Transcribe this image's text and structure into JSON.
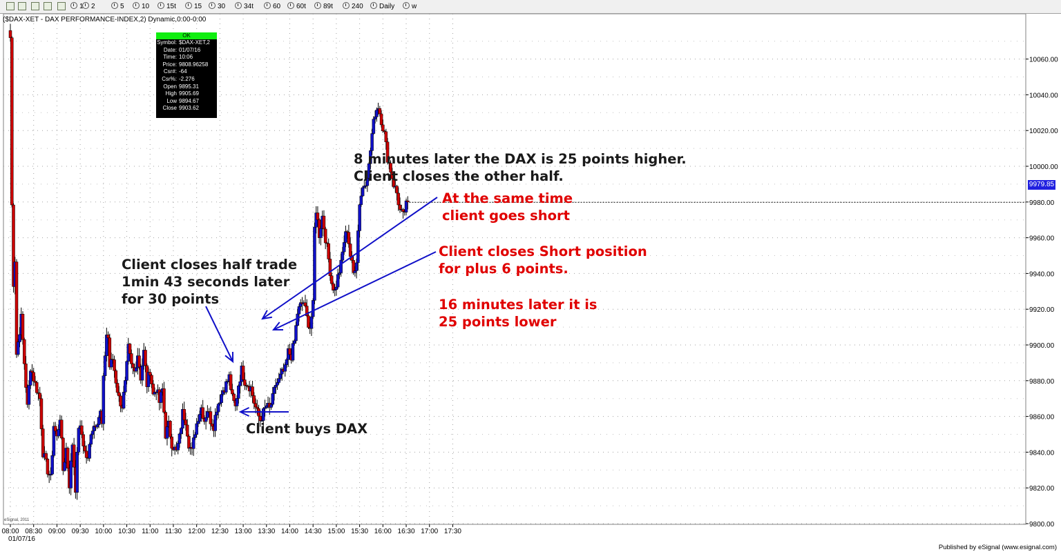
{
  "toolbar": {
    "buttons": [
      "1",
      "2",
      "5",
      "10",
      "15t",
      "15",
      "30",
      "34t",
      "60",
      "60t",
      "89t",
      "240",
      "Daily",
      "w"
    ]
  },
  "chart_title": "($DAX-XET - DAX PERFORMANCE-INDEX,2) Dynamic,0:00-0:00",
  "info_panel": {
    "status": "OK",
    "rows": [
      {
        "key": "Symbol:",
        "value": "$DAX-XET,2"
      },
      {
        "key": "Date:",
        "value": "01/07/16"
      },
      {
        "key": "Time:",
        "value": "10:06"
      },
      {
        "key": "Price:",
        "value": "9808.96258"
      },
      {
        "key": "Csr#:",
        "value": "-64"
      },
      {
        "key": "Csr%:",
        "value": "-2.276"
      },
      {
        "key": "Open",
        "value": "9895.31"
      },
      {
        "key": "High",
        "value": "9905.69"
      },
      {
        "key": "Low",
        "value": "9894.67"
      },
      {
        "key": "Close",
        "value": "9903.62"
      }
    ]
  },
  "annotations": {
    "a1_l1": "8 minutes later the DAX is 25 points higher.",
    "a1_l2": "Client closes the other half.",
    "a2_l1": "At the same time",
    "a2_l2": "client goes short",
    "a3_l1": "Client closes Short position",
    "a3_l2": "for plus 6 points.",
    "a4_l1": "16 minutes later it is",
    "a4_l2": "25 points lower",
    "a5_l1": "Client closes half trade",
    "a5_l2": "1min 43 seconds later",
    "a5_l3": "for 30 points",
    "a6": "Client buys DAX"
  },
  "last_price": "9979.85",
  "footer": "Published by eSignal (www.esignal.com)",
  "copyright": "eSignal, 2011",
  "colors": {
    "up": "#1010c8",
    "down": "#cc0000",
    "arrow": "#1010c8",
    "price_tag": "#2020e0"
  },
  "chart_data": {
    "type": "candlestick",
    "interval_minutes": 2,
    "date_label": "01/07/16",
    "x_tick_labels": [
      "08:00",
      "08:30",
      "09:00",
      "09:30",
      "10:00",
      "10:30",
      "11:00",
      "11:30",
      "12:00",
      "12:30",
      "13:00",
      "13:30",
      "14:00",
      "14:30",
      "15:00",
      "15:30",
      "16:00",
      "16:30",
      "17:00",
      "17:30"
    ],
    "y_tick_labels": [
      "9800.00",
      "9820.00",
      "9840.00",
      "9860.00",
      "9880.00",
      "9900.00",
      "9920.00",
      "9940.00",
      "9960.00",
      "9980.00",
      "10000.00",
      "10020.00",
      "10040.00",
      "10060.00"
    ],
    "ylim": [
      9787,
      10074
    ],
    "grid": true,
    "waypoints": [
      [
        "08:00",
        10072
      ],
      [
        "08:02",
        9978
      ],
      [
        "08:04",
        9935
      ],
      [
        "08:06",
        9948
      ],
      [
        "08:08",
        9895
      ],
      [
        "08:14",
        9915
      ],
      [
        "08:18",
        9890
      ],
      [
        "08:22",
        9865
      ],
      [
        "08:26",
        9888
      ],
      [
        "08:32",
        9878
      ],
      [
        "08:38",
        9870
      ],
      [
        "08:42",
        9840
      ],
      [
        "08:48",
        9830
      ],
      [
        "08:52",
        9825
      ],
      [
        "08:56",
        9855
      ],
      [
        "09:00",
        9848
      ],
      [
        "09:04",
        9860
      ],
      [
        "09:08",
        9830
      ],
      [
        "09:12",
        9842
      ],
      [
        "09:16",
        9822
      ],
      [
        "09:20",
        9845
      ],
      [
        "09:24",
        9820
      ],
      [
        "09:28",
        9855
      ],
      [
        "09:32",
        9850
      ],
      [
        "09:36",
        9840
      ],
      [
        "09:40",
        9835
      ],
      [
        "09:44",
        9852
      ],
      [
        "09:48",
        9855
      ],
      [
        "09:52",
        9858
      ],
      [
        "09:56",
        9862
      ],
      [
        "09:58",
        9855
      ],
      [
        "10:00",
        9880
      ],
      [
        "10:02",
        9895
      ],
      [
        "10:04",
        9906
      ],
      [
        "10:06",
        9904
      ],
      [
        "10:08",
        9888
      ],
      [
        "10:12",
        9892
      ],
      [
        "10:16",
        9880
      ],
      [
        "10:20",
        9870
      ],
      [
        "10:24",
        9866
      ],
      [
        "10:28",
        9878
      ],
      [
        "10:32",
        9898
      ],
      [
        "10:36",
        9888
      ],
      [
        "10:40",
        9885
      ],
      [
        "10:44",
        9895
      ],
      [
        "10:48",
        9882
      ],
      [
        "10:52",
        9896
      ],
      [
        "10:56",
        9878
      ],
      [
        "11:00",
        9886
      ],
      [
        "11:04",
        9872
      ],
      [
        "11:08",
        9876
      ],
      [
        "11:12",
        9868
      ],
      [
        "11:16",
        9875
      ],
      [
        "11:20",
        9850
      ],
      [
        "11:24",
        9855
      ],
      [
        "11:28",
        9845
      ],
      [
        "11:34",
        9840
      ],
      [
        "11:38",
        9848
      ],
      [
        "11:42",
        9862
      ],
      [
        "11:46",
        9858
      ],
      [
        "11:50",
        9845
      ],
      [
        "11:54",
        9840
      ],
      [
        "11:58",
        9852
      ],
      [
        "12:02",
        9860
      ],
      [
        "12:06",
        9865
      ],
      [
        "12:10",
        9858
      ],
      [
        "12:14",
        9864
      ],
      [
        "12:18",
        9858
      ],
      [
        "12:22",
        9855
      ],
      [
        "12:26",
        9865
      ],
      [
        "12:30",
        9870
      ],
      [
        "12:34",
        9875
      ],
      [
        "12:38",
        9878
      ],
      [
        "12:42",
        9882
      ],
      [
        "12:46",
        9870
      ],
      [
        "12:50",
        9865
      ],
      [
        "12:54",
        9878
      ],
      [
        "12:58",
        9886
      ],
      [
        "13:02",
        9880
      ],
      [
        "13:06",
        9878
      ],
      [
        "13:10",
        9876
      ],
      [
        "13:14",
        9868
      ],
      [
        "13:18",
        9862
      ],
      [
        "13:22",
        9858
      ],
      [
        "13:26",
        9862
      ],
      [
        "13:30",
        9866
      ],
      [
        "13:34",
        9864
      ],
      [
        "13:38",
        9870
      ],
      [
        "13:42",
        9878
      ],
      [
        "13:46",
        9880
      ],
      [
        "13:50",
        9884
      ],
      [
        "13:54",
        9886
      ],
      [
        "13:58",
        9896
      ],
      [
        "14:02",
        9894
      ],
      [
        "14:06",
        9902
      ],
      [
        "14:10",
        9918
      ],
      [
        "14:14",
        9922
      ],
      [
        "14:18",
        9924
      ],
      [
        "14:22",
        9915
      ],
      [
        "14:26",
        9910
      ],
      [
        "14:30",
        9922
      ],
      [
        "14:32",
        9965
      ],
      [
        "14:34",
        9976
      ],
      [
        "14:38",
        9962
      ],
      [
        "14:42",
        9972
      ],
      [
        "14:46",
        9960
      ],
      [
        "14:50",
        9948
      ],
      [
        "14:54",
        9935
      ],
      [
        "14:58",
        9930
      ],
      [
        "15:02",
        9938
      ],
      [
        "15:06",
        9945
      ],
      [
        "15:10",
        9958
      ],
      [
        "15:14",
        9965
      ],
      [
        "15:18",
        9950
      ],
      [
        "15:22",
        9940
      ],
      [
        "15:26",
        9948
      ],
      [
        "15:30",
        9980
      ],
      [
        "15:34",
        9988
      ],
      [
        "15:38",
        9992
      ],
      [
        "15:42",
        10000
      ],
      [
        "15:46",
        10018
      ],
      [
        "15:50",
        10030
      ],
      [
        "15:54",
        10034
      ],
      [
        "15:58",
        10026
      ],
      [
        "16:02",
        10018
      ],
      [
        "16:06",
        10005
      ],
      [
        "16:10",
        9998
      ],
      [
        "16:14",
        9990
      ],
      [
        "16:18",
        9985
      ],
      [
        "16:22",
        9975
      ],
      [
        "16:26",
        9972
      ],
      [
        "16:30",
        9978
      ],
      [
        "16:32",
        9980
      ]
    ]
  }
}
